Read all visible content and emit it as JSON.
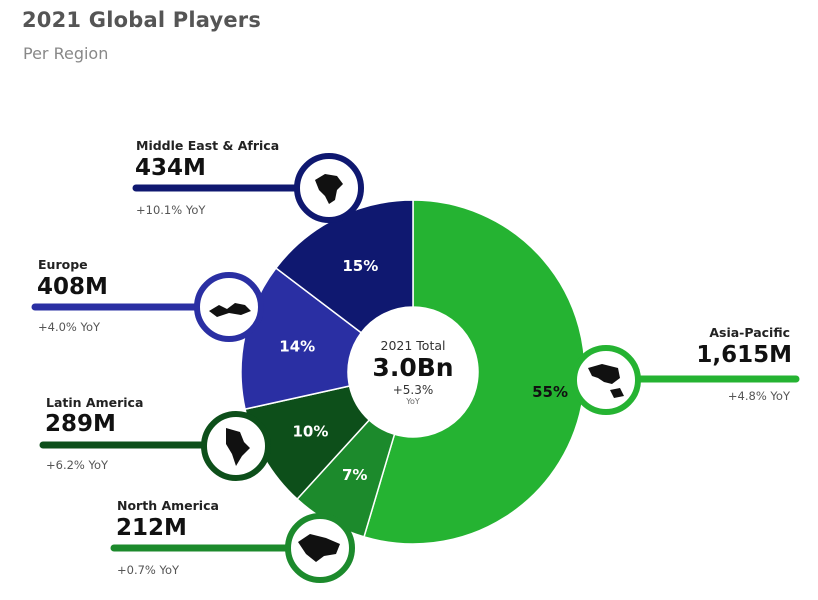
{
  "title": "2021 Global Players",
  "subtitle": "Per Region",
  "center": {
    "label": "2021 Total",
    "value": "3.0Bn",
    "yoy": "+5.3%",
    "yoy_unit": "YoY"
  },
  "colors": {
    "asia_pacific": "#25b332",
    "north_america": "#1c8a2c",
    "latin_america": "#0d4f1a",
    "europe": "#2a2fa3",
    "middle_east_africa": "#0f1870"
  },
  "chart_data": {
    "type": "pie",
    "title": "2021 Global Players",
    "subtitle": "Per Region",
    "categories": [
      "Asia-Pacific",
      "North America",
      "Latin America",
      "Europe",
      "Middle East & Africa"
    ],
    "values": [
      1615,
      212,
      289,
      408,
      434
    ],
    "percent_labels": [
      "55%",
      "7%",
      "10%",
      "14%",
      "15%"
    ],
    "value_labels": [
      "1,615M",
      "212M",
      "289M",
      "408M",
      "434M"
    ],
    "yoy_labels": [
      "+4.8% YoY",
      "+0.7% YoY",
      "+6.2% YoY",
      "+4.0% YoY",
      "+10.1% YoY"
    ],
    "icons": [
      "asia-pacific-map-icon",
      "north-america-map-icon",
      "latin-america-map-icon",
      "europe-map-icon",
      "middle-east-africa-map-icon"
    ],
    "donut": true,
    "legend": "callouts"
  }
}
